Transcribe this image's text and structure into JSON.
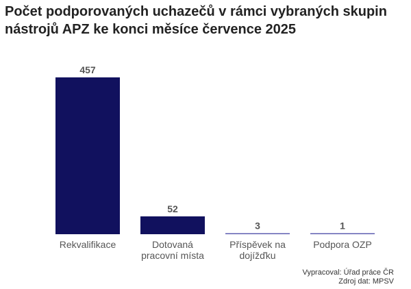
{
  "title": "Počet podporovaných uchazečů v rámci vybraných skupin nástrojů APZ ke konci měsíce července 2025",
  "source": {
    "line1": "Vypracoval: Úřad práce ČR",
    "line2": "Zdroj dat: MPSV"
  },
  "colors": {
    "bar": "#11115e",
    "bar_small": "#5e5eb0"
  },
  "chart_data": {
    "type": "bar",
    "title": "Počet podporovaných uchazečů v rámci vybraných skupin nástrojů APZ ke konci měsíce července 2025",
    "categories": [
      [
        "Rekvalifikace"
      ],
      [
        "Dotovaná",
        "pracovní místa"
      ],
      [
        "Příspěvek na",
        "dojížďku"
      ],
      [
        "Podpora OZP"
      ]
    ],
    "values": [
      457,
      52,
      3,
      1
    ],
    "xlabel": "",
    "ylabel": "",
    "ylim": [
      0,
      457
    ],
    "grid": false,
    "legend": "none"
  }
}
